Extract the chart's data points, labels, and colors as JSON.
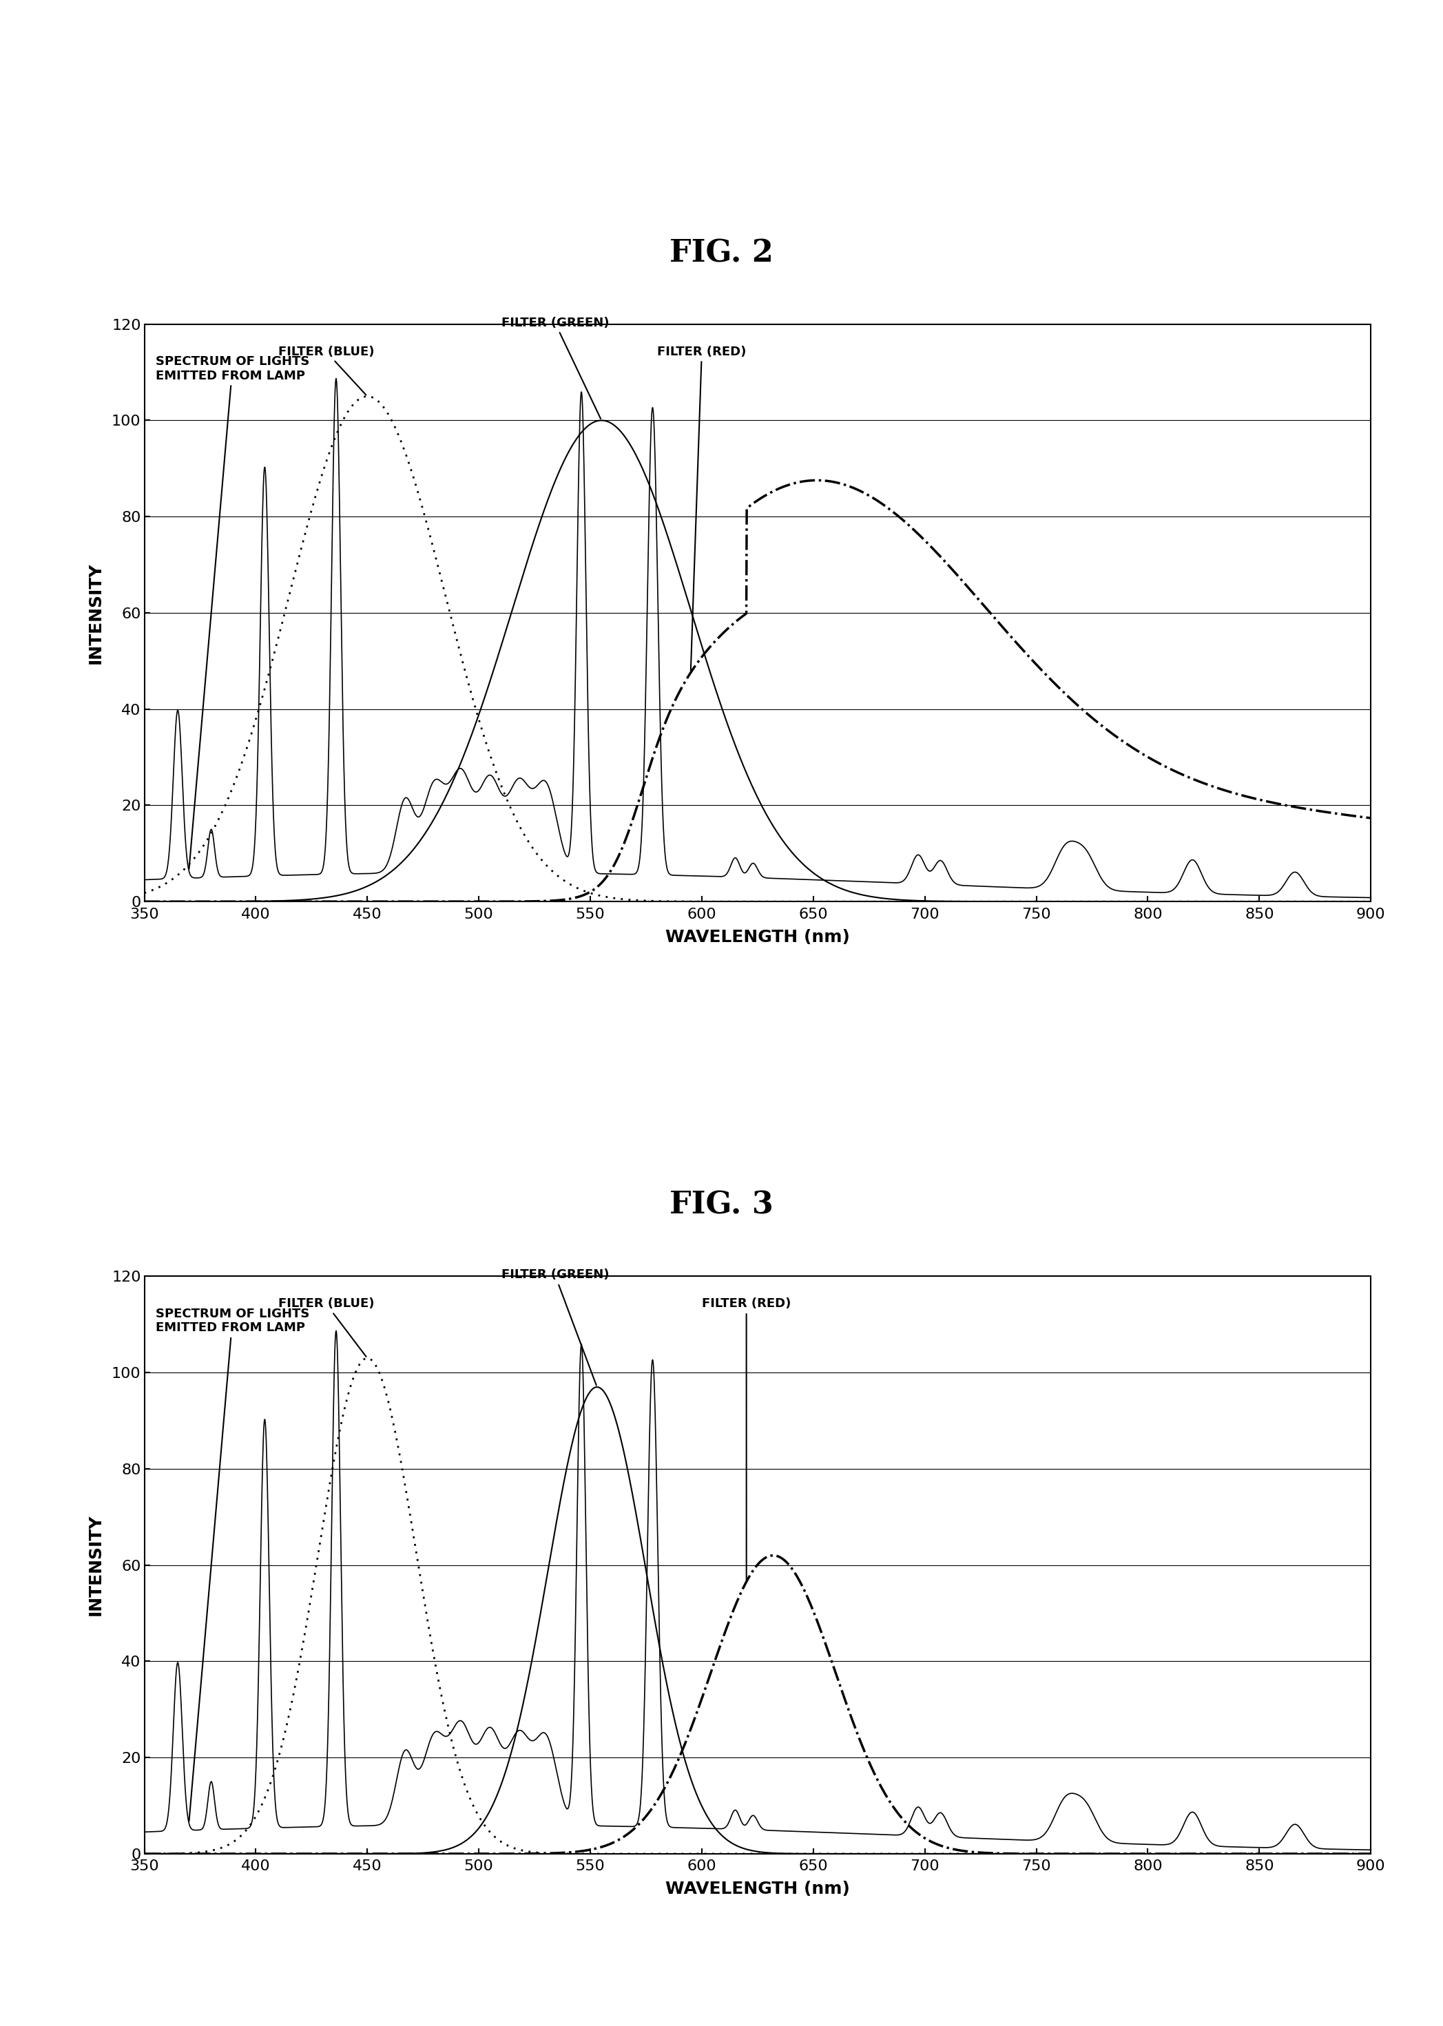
{
  "fig2_title": "FIG. 2",
  "fig3_title": "FIG. 3",
  "xlabel": "WAVELENGTH (nm)",
  "ylabel": "INTENSITY",
  "xlim": [
    350,
    900
  ],
  "ylim": [
    0,
    120
  ],
  "yticks": [
    0,
    20,
    40,
    60,
    80,
    100,
    120
  ],
  "xticks": [
    350,
    400,
    450,
    500,
    550,
    600,
    650,
    700,
    750,
    800,
    850,
    900
  ],
  "background_color": "#ffffff",
  "annotation_lamp": "SPECTRUM OF LIGHTS\nEMITTED FROM LAMP",
  "annotation_blue": "FILTER (BLUE)",
  "annotation_green": "FILTER (GREEN)",
  "annotation_red": "FILTER (RED)"
}
